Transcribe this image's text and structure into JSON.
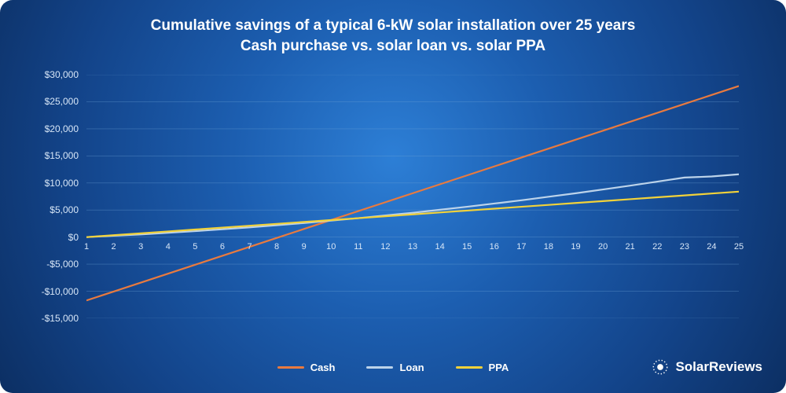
{
  "title_line1": "Cumulative savings of a typical 6-kW solar installation over 25 years",
  "title_line2": "Cash purchase vs. solar loan vs. solar PPA",
  "title_fontsize": 19,
  "title_color": "#ffffff",
  "background_gradient": [
    "#2d7fd6",
    "#1c5eb0",
    "#13448a",
    "#0c2f63"
  ],
  "chart": {
    "type": "line",
    "x_values": [
      1,
      2,
      3,
      4,
      5,
      6,
      7,
      8,
      9,
      10,
      11,
      12,
      13,
      14,
      15,
      16,
      17,
      18,
      19,
      20,
      21,
      22,
      23,
      24,
      25
    ],
    "x_tick_labels": [
      "1",
      "2",
      "3",
      "4",
      "5",
      "6",
      "7",
      "8",
      "9",
      "10",
      "11",
      "12",
      "13",
      "14",
      "15",
      "16",
      "17",
      "18",
      "19",
      "20",
      "21",
      "22",
      "23",
      "24",
      "25"
    ],
    "y_ticks": [
      -15000,
      -10000,
      -5000,
      0,
      5000,
      10000,
      15000,
      20000,
      25000,
      30000
    ],
    "y_tick_labels": [
      "-$15,000",
      "-$10,000",
      "-$5,000",
      "$0",
      "$5,000",
      "$10,000",
      "$15,000",
      "$20,000",
      "$25,000",
      "$30,000"
    ],
    "ylim": [
      -15000,
      30000
    ],
    "xlim": [
      1,
      25
    ],
    "gridline_color": "#6fa4d6",
    "gridline_width": 0.6,
    "gridline_opacity": 0.5,
    "axis_label_color": "#d7e6f7",
    "axis_label_fontsize": 12,
    "line_width": 2.2,
    "series": [
      {
        "name": "Cash",
        "color": "#e87a3f",
        "values": [
          -11700,
          -10050,
          -8400,
          -6750,
          -5100,
          -3450,
          -1800,
          -150,
          1500,
          3150,
          4800,
          6450,
          8100,
          9750,
          11400,
          13050,
          14700,
          16350,
          18000,
          19650,
          21300,
          22950,
          24600,
          26250,
          27900
        ]
      },
      {
        "name": "Loan",
        "color": "#bcd3ea",
        "values": [
          0,
          250,
          500,
          800,
          1100,
          1450,
          1800,
          2200,
          2600,
          3050,
          3500,
          4000,
          4500,
          5050,
          5600,
          6200,
          6800,
          7450,
          8100,
          8800,
          9500,
          10250,
          11000,
          11200,
          11600
        ]
      },
      {
        "name": "PPA",
        "color": "#f2d23a",
        "values": [
          0,
          350,
          700,
          1050,
          1400,
          1750,
          2100,
          2450,
          2800,
          3150,
          3500,
          3850,
          4200,
          4550,
          4900,
          5250,
          5600,
          5950,
          6300,
          6650,
          7000,
          7350,
          7700,
          8050,
          8400
        ]
      }
    ]
  },
  "legend": {
    "items": [
      {
        "label": "Cash",
        "color": "#e87a3f"
      },
      {
        "label": "Loan",
        "color": "#bcd3ea"
      },
      {
        "label": "PPA",
        "color": "#f2d23a"
      }
    ],
    "fontsize": 13,
    "text_color": "#ffffff"
  },
  "brand": {
    "text": "SolarReviews",
    "icon_color": "#ffffff",
    "text_color": "#ffffff"
  }
}
